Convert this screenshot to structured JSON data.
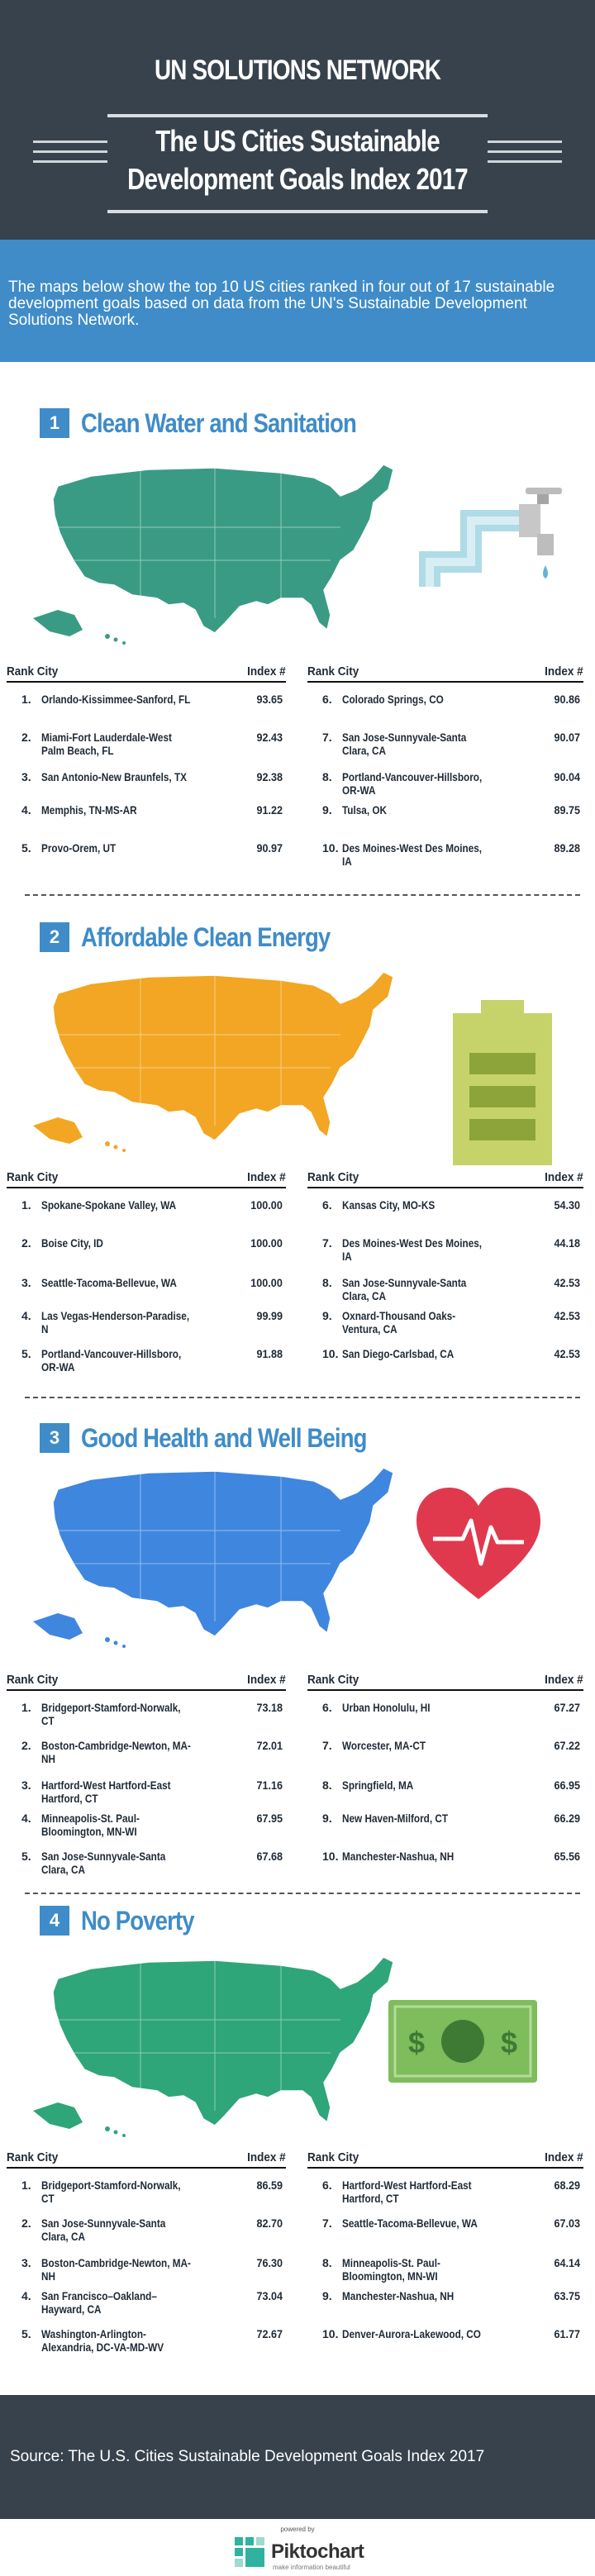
{
  "header": {
    "org": "UN SOLUTIONS NETWORK",
    "title_line1": "The US Cities Sustainable",
    "title_line2": "Development Goals Index 2017"
  },
  "intro": "The maps below show the top 10 US cities ranked in four out of 17 sustainable development goals based on data from the UN's Sustainable Development Solutions Network.",
  "table_headers": {
    "rank_city": "Rank City",
    "index": "Index #"
  },
  "sections": [
    {
      "num": "1",
      "title": "Clean Water and Sanitation",
      "color": "#3a9b84",
      "icon": "faucet-icon",
      "left": [
        {
          "rank": "1.",
          "city": "Orlando-Kissimmee-Sanford, FL",
          "index": "93.65"
        },
        {
          "rank": "2.",
          "city": "Miami-Fort Lauderdale-West Palm Beach, FL",
          "index": "92.43"
        },
        {
          "rank": "3.",
          "city": "San Antonio-New Braunfels, TX",
          "index": "92.38"
        },
        {
          "rank": "4.",
          "city": "Memphis, TN-MS-AR",
          "index": "91.22"
        },
        {
          "rank": "5.",
          "city": "Provo-Orem, UT",
          "index": "90.97"
        }
      ],
      "right": [
        {
          "rank": "6.",
          "city": "Colorado Springs, CO",
          "index": "90.86"
        },
        {
          "rank": "7.",
          "city": "San Jose-Sunnyvale-Santa Clara, CA",
          "index": "90.07"
        },
        {
          "rank": "8.",
          "city": "Portland-Vancouver-Hillsboro, OR-WA",
          "index": "90.04"
        },
        {
          "rank": "9.",
          "city": "Tulsa, OK",
          "index": "89.75"
        },
        {
          "rank": "10.",
          "city": "Des Moines-West Des Moines, IA",
          "index": "89.28"
        }
      ]
    },
    {
      "num": "2",
      "title": "Affordable Clean Energy",
      "color": "#f2a623",
      "icon": "battery-icon",
      "left": [
        {
          "rank": "1.",
          "city": "Spokane-Spokane Valley, WA",
          "index": "100.00"
        },
        {
          "rank": "2.",
          "city": "Boise City, ID",
          "index": "100.00"
        },
        {
          "rank": "3.",
          "city": "Seattle-Tacoma-Bellevue, WA",
          "index": "100.00"
        },
        {
          "rank": "4.",
          "city": "Las Vegas-Henderson-Paradise, N",
          "index": "99.99"
        },
        {
          "rank": "5.",
          "city": "Portland-Vancouver-Hillsboro, OR-WA",
          "index": "91.88"
        }
      ],
      "right": [
        {
          "rank": "6.",
          "city": "Kansas City, MO-KS",
          "index": "54.30"
        },
        {
          "rank": "7.",
          "city": "Des Moines-West Des Moines, IA",
          "index": "44.18"
        },
        {
          "rank": "8.",
          "city": "San Jose-Sunnyvale-Santa Clara, CA",
          "index": "42.53"
        },
        {
          "rank": "9.",
          "city": "Oxnard-Thousand Oaks-Ventura, CA",
          "index": "42.53"
        },
        {
          "rank": "10.",
          "city": "San Diego-Carlsbad, CA",
          "index": "42.53"
        }
      ]
    },
    {
      "num": "3",
      "title": "Good Health and Well Being",
      "color": "#3f86df",
      "icon": "heart-icon",
      "left": [
        {
          "rank": "1.",
          "city": "Bridgeport-Stamford-Norwalk, CT",
          "index": "73.18"
        },
        {
          "rank": "2.",
          "city": "Boston-Cambridge-Newton, MA-NH",
          "index": "72.01"
        },
        {
          "rank": "3.",
          "city": "Hartford-West Hartford-East Hartford, CT",
          "index": "71.16"
        },
        {
          "rank": "4.",
          "city": "Minneapolis-St. Paul-Bloomington, MN-WI",
          "index": "67.95"
        },
        {
          "rank": "5.",
          "city": "San Jose-Sunnyvale-Santa Clara, CA",
          "index": "67.68"
        }
      ],
      "right": [
        {
          "rank": "6.",
          "city": "Urban Honolulu, HI",
          "index": "67.27"
        },
        {
          "rank": "7.",
          "city": "Worcester, MA-CT",
          "index": "67.22"
        },
        {
          "rank": "8.",
          "city": "Springfield, MA",
          "index": "66.95"
        },
        {
          "rank": "9.",
          "city": "New Haven-Milford, CT",
          "index": "66.29"
        },
        {
          "rank": "10.",
          "city": "Manchester-Nashua, NH",
          "index": "65.56"
        }
      ]
    },
    {
      "num": "4",
      "title": "No Poverty",
      "color": "#2fa57a",
      "icon": "dollar-bill-icon",
      "left": [
        {
          "rank": "1.",
          "city": "Bridgeport-Stamford-Norwalk, CT",
          "index": "86.59"
        },
        {
          "rank": "2.",
          "city": "San Jose-Sunnyvale-Santa Clara, CA",
          "index": "82.70"
        },
        {
          "rank": "3.",
          "city": "Boston-Cambridge-Newton, MA-NH",
          "index": "76.30"
        },
        {
          "rank": "4.",
          "city": "San Francisco–Oakland–Hayward, CA",
          "index": "73.04"
        },
        {
          "rank": "5.",
          "city": "Washington-Arlington-Alexandria, DC-VA-MD-WV",
          "index": "72.67"
        }
      ],
      "right": [
        {
          "rank": "6.",
          "city": "Hartford-West Hartford-East Hartford, CT",
          "index": "68.29"
        },
        {
          "rank": "7.",
          "city": "Seattle-Tacoma-Bellevue, WA",
          "index": "67.03"
        },
        {
          "rank": "8.",
          "city": "Minneapolis-St. Paul-Bloomington, MN-WI",
          "index": "64.14"
        },
        {
          "rank": "9.",
          "city": "Manchester-Nashua, NH",
          "index": "63.75"
        },
        {
          "rank": "10.",
          "city": "Denver-Aurora-Lakewood, CO",
          "index": "61.77"
        }
      ]
    }
  ],
  "footer": {
    "source": "Source: The U.S. Cities Sustainable Development Goals Index 2017"
  },
  "brand": {
    "powered": "powered by",
    "name": "Piktochart",
    "tagline": "make information beautiful"
  },
  "colors": {
    "header_bg": "#37424d",
    "accent": "#3f8cc8"
  }
}
